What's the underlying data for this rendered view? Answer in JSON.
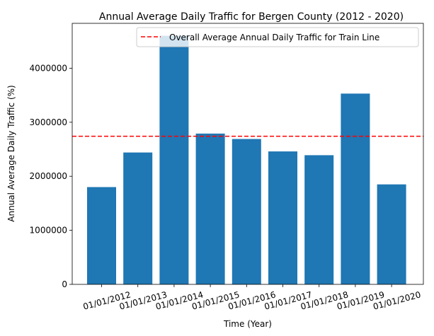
{
  "chart_data": {
    "type": "bar",
    "title": "Annual Average Daily Traffic for Bergen County (2012 - 2020)",
    "xlabel": "Time (Year)",
    "ylabel": "Annual Average Daily Traffic (%)",
    "categories": [
      "01/01/2012",
      "01/01/2013",
      "01/01/2014",
      "01/01/2015",
      "01/01/2016",
      "01/01/2017",
      "01/01/2018",
      "01/01/2019",
      "01/01/2020"
    ],
    "values": [
      1800000,
      2440000,
      4600000,
      2790000,
      2690000,
      2460000,
      2390000,
      3530000,
      1850000
    ],
    "ylim": [
      0,
      4830000
    ],
    "yticks": [
      0,
      1000000,
      2000000,
      3000000,
      4000000
    ],
    "ytick_labels": [
      "0",
      "1000000",
      "2000000",
      "3000000",
      "4000000"
    ],
    "bar_color": "#1f77b4",
    "reference_line": {
      "label": "Overall Average Annual Daily Traffic for Train Line",
      "value": 2740000,
      "color": "#ff0000",
      "style": "dashed"
    },
    "legend_position": "top-right",
    "grid": false
  }
}
